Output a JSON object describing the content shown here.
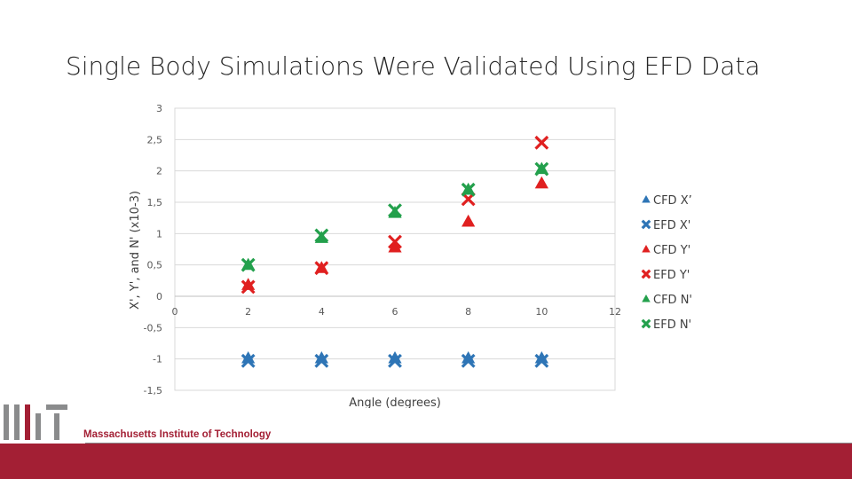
{
  "title": "Single Body Simulations Were Validated Using EFD Data",
  "footer": {
    "institute": "Massachusetts Institute of Technology"
  },
  "colors": {
    "blue": "#2e75b6",
    "red": "#e02020",
    "green": "#23a04c",
    "mit_red": "#a31f34"
  },
  "chart_data": {
    "type": "scatter",
    "xlabel": "Angle (degrees)",
    "ylabel": "X', Y', and N' (x10-3)",
    "xlim": [
      0,
      12
    ],
    "ylim": [
      -1.5,
      3
    ],
    "xticks": [
      "0",
      "2",
      "4",
      "6",
      "8",
      "10",
      "12"
    ],
    "yticks": [
      "-1,5",
      "-1",
      "-0,5",
      "0",
      "0,5",
      "1",
      "1,5",
      "2",
      "2,5",
      "3"
    ],
    "grid": "horizontal",
    "legend_position": "right",
    "series": [
      {
        "name": "CFD X’",
        "marker": "triangle",
        "color": "#2e75b6",
        "x": [
          2,
          4,
          6,
          8,
          10
        ],
        "y": [
          -0.99,
          -0.99,
          -0.99,
          -0.99,
          -0.99
        ]
      },
      {
        "name": "EFD X'",
        "marker": "x",
        "color": "#2e75b6",
        "x": [
          2,
          4,
          6,
          8,
          10
        ],
        "y": [
          -1.03,
          -1.03,
          -1.03,
          -1.03,
          -1.03
        ]
      },
      {
        "name": "CFD Y'",
        "marker": "triangle",
        "color": "#e02020",
        "x": [
          2,
          4,
          6,
          8,
          10
        ],
        "y": [
          0.18,
          0.45,
          0.78,
          1.19,
          1.8
        ]
      },
      {
        "name": "EFD Y'",
        "marker": "x",
        "color": "#e02020",
        "x": [
          2,
          4,
          6,
          8,
          10
        ],
        "y": [
          0.15,
          0.45,
          0.87,
          1.55,
          2.45
        ]
      },
      {
        "name": "CFD N'",
        "marker": "triangle",
        "color": "#23a04c",
        "x": [
          2,
          4,
          6,
          8,
          10
        ],
        "y": [
          0.5,
          0.93,
          1.33,
          1.7,
          2.03
        ]
      },
      {
        "name": "EFD N'",
        "marker": "x",
        "color": "#23a04c",
        "x": [
          2,
          4,
          6,
          8,
          10
        ],
        "y": [
          0.5,
          0.97,
          1.37,
          1.7,
          2.03
        ]
      }
    ]
  }
}
